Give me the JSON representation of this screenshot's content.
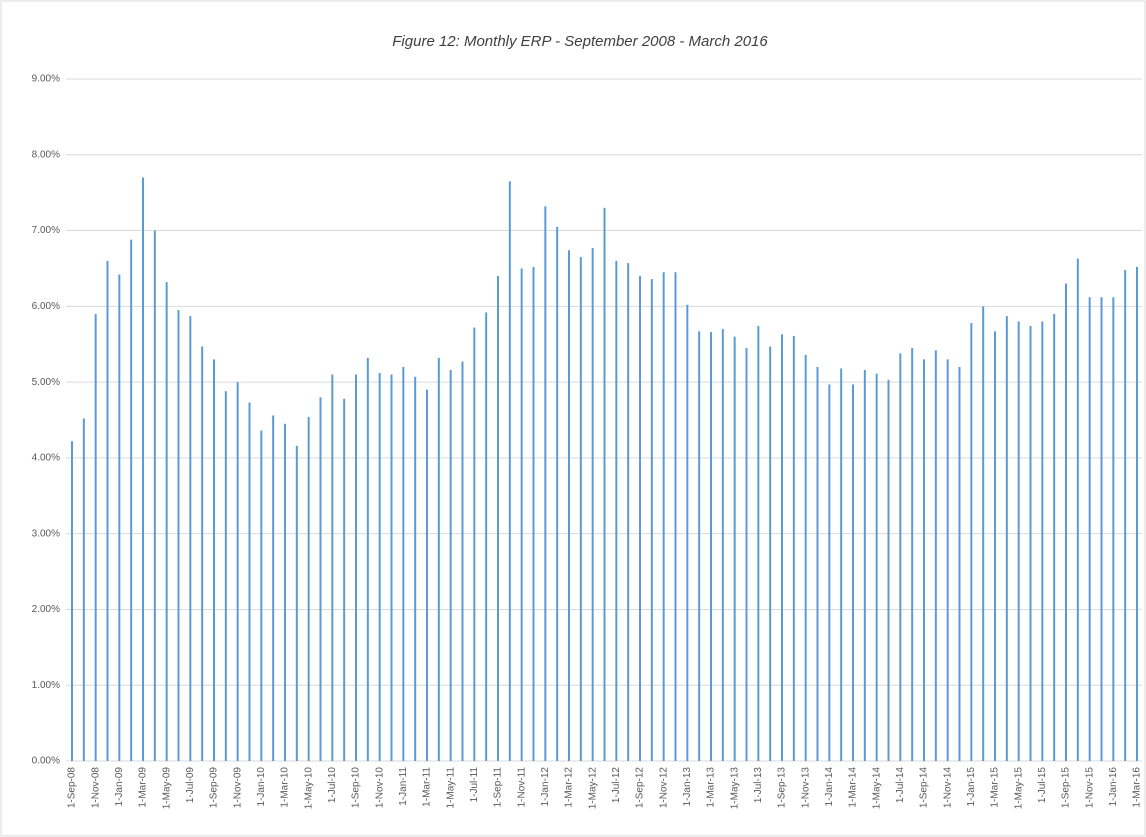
{
  "chart_data": {
    "type": "bar",
    "title": "Figure 12: Monthly ERP - September 2008 - March 2016",
    "color": "#5b9bd5",
    "grid": true,
    "ylim": [
      0,
      9
    ],
    "yticks": [
      {
        "value": 0,
        "label": "0.00%"
      },
      {
        "value": 1,
        "label": "1.00%"
      },
      {
        "value": 2,
        "label": "2.00%"
      },
      {
        "value": 3,
        "label": "3.00%"
      },
      {
        "value": 4,
        "label": "4.00%"
      },
      {
        "value": 5,
        "label": "5.00%"
      },
      {
        "value": 6,
        "label": "6.00%"
      },
      {
        "value": 7,
        "label": "7.00%"
      },
      {
        "value": 8,
        "label": "8.00%"
      },
      {
        "value": 9,
        "label": "9.00%"
      }
    ],
    "categories": [
      "1-Sep-08",
      null,
      "1-Nov-08",
      null,
      "1-Jan-09",
      null,
      "1-Mar-09",
      null,
      "1-May-09",
      null,
      "1-Jul-09",
      null,
      "1-Sep-09",
      null,
      "1-Nov-09",
      null,
      "1-Jan-10",
      null,
      "1-Mar-10",
      null,
      "1-May-10",
      null,
      "1-Jul-10",
      null,
      "1-Sep-10",
      null,
      "1-Nov-10",
      null,
      "1-Jan-11",
      null,
      "1-Mar-11",
      null,
      "1-May-11",
      null,
      "1-Jul-11",
      null,
      "1-Sep-11",
      null,
      "1-Nov-11",
      null,
      "1-Jan-12",
      null,
      "1-Mar-12",
      null,
      "1-May-12",
      null,
      "1-Jul-12",
      null,
      "1-Sep-12",
      null,
      "1-Nov-12",
      null,
      "1-Jan-13",
      null,
      "1-Mar-13",
      null,
      "1-May-13",
      null,
      "1-Jul-13",
      null,
      "1-Sep-13",
      null,
      "1-Nov-13",
      null,
      "1-Jan-14",
      null,
      "1-Mar-14",
      null,
      "1-May-14",
      null,
      "1-Jul-14",
      null,
      "1-Sep-14",
      null,
      "1-Nov-14",
      null,
      "1-Jan-15",
      null,
      "1-Mar-15",
      null,
      "1-May-15",
      null,
      "1-Jul-15",
      null,
      "1-Sep-15",
      null,
      "1-Nov-15",
      null,
      "1-Jan-16",
      null,
      "1-Mar-16"
    ],
    "values": [
      4.22,
      4.52,
      5.9,
      6.6,
      6.42,
      6.88,
      7.7,
      7.0,
      6.32,
      5.95,
      5.87,
      5.47,
      5.3,
      4.88,
      5.0,
      4.73,
      4.36,
      4.56,
      4.45,
      4.16,
      4.54,
      4.8,
      5.1,
      4.78,
      5.1,
      5.32,
      5.12,
      5.1,
      5.2,
      5.07,
      4.9,
      5.32,
      5.16,
      5.27,
      5.72,
      5.92,
      6.4,
      7.65,
      6.5,
      6.52,
      7.32,
      7.05,
      6.74,
      6.65,
      6.77,
      7.3,
      6.6,
      6.57,
      6.4,
      6.36,
      6.45,
      6.45,
      6.02,
      5.67,
      5.66,
      5.7,
      5.6,
      5.45,
      5.74,
      5.47,
      5.63,
      5.61,
      5.36,
      5.2,
      4.97,
      5.18,
      4.97,
      5.16,
      5.11,
      5.03,
      5.38,
      5.45,
      5.3,
      5.42,
      5.3,
      5.2,
      5.78,
      6.0,
      5.67,
      5.87,
      5.8,
      5.74,
      5.8,
      5.9,
      6.3,
      6.63,
      6.12,
      6.12,
      6.12,
      6.48,
      6.52
    ]
  }
}
